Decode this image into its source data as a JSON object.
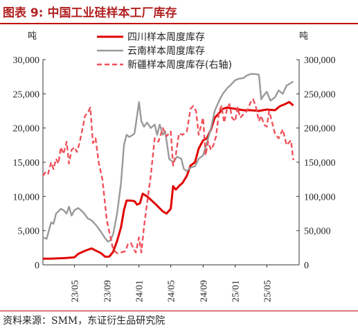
{
  "figure": {
    "title": "图表 9:  中国工业硅样本工厂库存",
    "source": "资料来源：SMM，东证衍生品研究院"
  },
  "chart_data": {
    "type": "line",
    "left_unit": "吨",
    "right_unit": "吨",
    "left_ylim": [
      0,
      30000
    ],
    "right_ylim": [
      0,
      300000
    ],
    "left_ticks": [
      "0",
      "5,000",
      "10,000",
      "15,000",
      "20,000",
      "25,000",
      "30,000"
    ],
    "right_ticks": [
      "0",
      "50,000",
      "100,000",
      "150,000",
      "200,000",
      "250,000",
      "300,000"
    ],
    "x_range": [
      "2023-01-01",
      "2025-09-01"
    ],
    "x_ticks": [
      "23/05",
      "23/09",
      "24/01",
      "24/05",
      "24/09",
      "25/01",
      "25/05"
    ],
    "legend_position": "top-center",
    "grid": false,
    "series": [
      {
        "name": "四川样本周度库存",
        "axis": "left",
        "color": "#e00000",
        "dash": "solid",
        "points": [
          [
            "2023-01-01",
            900
          ],
          [
            "2023-02-01",
            900
          ],
          [
            "2023-03-01",
            950
          ],
          [
            "2023-04-01",
            1000
          ],
          [
            "2023-05-01",
            1100
          ],
          [
            "2023-05-15",
            1600
          ],
          [
            "2023-06-01",
            1900
          ],
          [
            "2023-06-20",
            2200
          ],
          [
            "2023-07-05",
            2400
          ],
          [
            "2023-07-20",
            2100
          ],
          [
            "2023-08-10",
            1700
          ],
          [
            "2023-08-25",
            1200
          ],
          [
            "2023-09-10",
            1200
          ],
          [
            "2023-09-25",
            1900
          ],
          [
            "2023-10-10",
            3500
          ],
          [
            "2023-10-25",
            5500
          ],
          [
            "2023-11-05",
            8000
          ],
          [
            "2023-11-15",
            9400
          ],
          [
            "2023-12-01",
            9400
          ],
          [
            "2023-12-15",
            9300
          ],
          [
            "2023-12-25",
            8800
          ],
          [
            "2024-01-05",
            9000
          ],
          [
            "2024-01-15",
            10400
          ],
          [
            "2024-02-01",
            10000
          ],
          [
            "2024-03-01",
            9000
          ],
          [
            "2024-04-01",
            7800
          ],
          [
            "2024-04-15",
            7500
          ],
          [
            "2024-05-01",
            8200
          ],
          [
            "2024-05-10",
            11500
          ],
          [
            "2024-05-20",
            11000
          ],
          [
            "2024-06-01",
            11500
          ],
          [
            "2024-06-15",
            12000
          ],
          [
            "2024-07-01",
            13000
          ],
          [
            "2024-07-15",
            14500
          ],
          [
            "2024-08-01",
            15000
          ],
          [
            "2024-08-15",
            17000
          ],
          [
            "2024-09-01",
            18200
          ],
          [
            "2024-09-15",
            18500
          ],
          [
            "2024-10-01",
            19800
          ],
          [
            "2024-10-15",
            21500
          ],
          [
            "2024-11-01",
            22200
          ],
          [
            "2024-11-15",
            22800
          ],
          [
            "2024-12-01",
            23000
          ],
          [
            "2025-01-01",
            22800
          ],
          [
            "2025-02-01",
            22600
          ],
          [
            "2025-03-01",
            22600
          ],
          [
            "2025-04-01",
            22500
          ],
          [
            "2025-05-01",
            22700
          ],
          [
            "2025-06-01",
            22600
          ],
          [
            "2025-06-20",
            23200
          ],
          [
            "2025-07-10",
            23500
          ],
          [
            "2025-07-25",
            23800
          ],
          [
            "2025-08-10",
            23300
          ]
        ]
      },
      {
        "name": "云南样本周度库存",
        "axis": "left",
        "color": "#999999",
        "dash": "solid",
        "points": [
          [
            "2023-01-01",
            4000
          ],
          [
            "2023-01-15",
            3800
          ],
          [
            "2023-02-01",
            6200
          ],
          [
            "2023-02-10",
            6000
          ],
          [
            "2023-02-20",
            7500
          ],
          [
            "2023-03-01",
            7800
          ],
          [
            "2023-03-10",
            8200
          ],
          [
            "2023-03-20",
            8000
          ],
          [
            "2023-04-01",
            7500
          ],
          [
            "2023-04-10",
            8500
          ],
          [
            "2023-04-20",
            7200
          ],
          [
            "2023-05-01",
            8000
          ],
          [
            "2023-05-15",
            8300
          ],
          [
            "2023-05-25",
            8000
          ],
          [
            "2023-06-05",
            7600
          ],
          [
            "2023-06-20",
            6800
          ],
          [
            "2023-07-05",
            6500
          ],
          [
            "2023-07-20",
            5900
          ],
          [
            "2023-08-10",
            4800
          ],
          [
            "2023-08-25",
            3900
          ],
          [
            "2023-09-05",
            3400
          ],
          [
            "2023-09-15",
            3600
          ],
          [
            "2023-09-25",
            4500
          ],
          [
            "2023-10-10",
            7500
          ],
          [
            "2023-10-25",
            12000
          ],
          [
            "2023-11-05",
            17500
          ],
          [
            "2023-11-15",
            19000
          ],
          [
            "2023-11-25",
            18700
          ],
          [
            "2023-12-05",
            18900
          ],
          [
            "2023-12-15",
            19200
          ],
          [
            "2023-12-25",
            21800
          ],
          [
            "2024-01-01",
            23800
          ],
          [
            "2024-01-10",
            21000
          ],
          [
            "2024-01-20",
            20200
          ],
          [
            "2024-02-01",
            20800
          ],
          [
            "2024-02-15",
            20000
          ],
          [
            "2024-03-01",
            20500
          ],
          [
            "2024-03-10",
            19000
          ],
          [
            "2024-03-20",
            20500
          ],
          [
            "2024-04-01",
            19000
          ],
          [
            "2024-04-10",
            19500
          ],
          [
            "2024-04-25",
            15500
          ],
          [
            "2024-05-10",
            15000
          ],
          [
            "2024-05-25",
            15800
          ],
          [
            "2024-06-10",
            15500
          ],
          [
            "2024-06-20",
            14000
          ],
          [
            "2024-07-01",
            13700
          ],
          [
            "2024-07-15",
            14200
          ],
          [
            "2024-08-01",
            14400
          ],
          [
            "2024-08-15",
            15500
          ],
          [
            "2024-09-01",
            16000
          ],
          [
            "2024-09-15",
            17800
          ],
          [
            "2024-10-01",
            20000
          ],
          [
            "2024-10-15",
            22500
          ],
          [
            "2024-11-01",
            24000
          ],
          [
            "2024-11-15",
            25000
          ],
          [
            "2024-12-01",
            25800
          ],
          [
            "2024-12-15",
            26300
          ],
          [
            "2025-01-01",
            27000
          ],
          [
            "2025-01-15",
            27200
          ],
          [
            "2025-02-01",
            27300
          ],
          [
            "2025-02-15",
            27700
          ],
          [
            "2025-03-01",
            27900
          ],
          [
            "2025-03-15",
            27900
          ],
          [
            "2025-04-01",
            27800
          ],
          [
            "2025-04-10",
            24200
          ],
          [
            "2025-04-20",
            24800
          ],
          [
            "2025-05-01",
            25300
          ],
          [
            "2025-05-15",
            24000
          ],
          [
            "2025-06-01",
            24500
          ],
          [
            "2025-06-15",
            25500
          ],
          [
            "2025-07-01",
            25000
          ],
          [
            "2025-07-15",
            26200
          ],
          [
            "2025-08-10",
            26800
          ]
        ]
      },
      {
        "name": "新疆样本周度库存(右轴)",
        "axis": "right",
        "color": "#f0505a",
        "dash": "dashed",
        "points": [
          [
            "2023-01-01",
            130000
          ],
          [
            "2023-01-10",
            135000
          ],
          [
            "2023-01-20",
            132000
          ],
          [
            "2023-02-01",
            150000
          ],
          [
            "2023-02-10",
            140000
          ],
          [
            "2023-02-20",
            155000
          ],
          [
            "2023-03-01",
            148000
          ],
          [
            "2023-03-10",
            172000
          ],
          [
            "2023-03-20",
            162000
          ],
          [
            "2023-04-01",
            180000
          ],
          [
            "2023-04-10",
            148000
          ],
          [
            "2023-04-20",
            168000
          ],
          [
            "2023-05-01",
            172000
          ],
          [
            "2023-05-10",
            165000
          ],
          [
            "2023-05-20",
            178000
          ],
          [
            "2023-06-01",
            200000
          ],
          [
            "2023-06-10",
            218000
          ],
          [
            "2023-06-20",
            222000
          ],
          [
            "2023-06-30",
            230000
          ],
          [
            "2023-07-10",
            178000
          ],
          [
            "2023-07-20",
            185000
          ],
          [
            "2023-08-01",
            150000
          ],
          [
            "2023-08-15",
            125000
          ],
          [
            "2023-09-01",
            65000
          ],
          [
            "2023-09-15",
            40000
          ],
          [
            "2023-09-25",
            22000
          ],
          [
            "2023-10-10",
            17000
          ],
          [
            "2023-10-25",
            18000
          ],
          [
            "2023-11-10",
            20000
          ],
          [
            "2023-11-20",
            30000
          ],
          [
            "2023-12-01",
            32000
          ],
          [
            "2023-12-10",
            25000
          ],
          [
            "2023-12-20",
            18000
          ],
          [
            "2024-01-01",
            40000
          ],
          [
            "2024-01-10",
            18000
          ],
          [
            "2024-01-20",
            55000
          ],
          [
            "2024-02-01",
            90000
          ],
          [
            "2024-02-15",
            130000
          ],
          [
            "2024-03-01",
            185000
          ],
          [
            "2024-03-15",
            180000
          ],
          [
            "2024-04-01",
            200000
          ],
          [
            "2024-04-15",
            188000
          ],
          [
            "2024-05-01",
            195000
          ],
          [
            "2024-05-10",
            145000
          ],
          [
            "2024-05-20",
            160000
          ],
          [
            "2024-06-01",
            192000
          ],
          [
            "2024-06-15",
            190000
          ],
          [
            "2024-07-01",
            195000
          ],
          [
            "2024-07-15",
            228000
          ],
          [
            "2024-07-25",
            232000
          ],
          [
            "2024-08-05",
            225000
          ],
          [
            "2024-08-15",
            190000
          ],
          [
            "2024-09-01",
            215000
          ],
          [
            "2024-09-10",
            160000
          ],
          [
            "2024-09-20",
            180000
          ],
          [
            "2024-10-01",
            168000
          ],
          [
            "2024-10-10",
            175000
          ],
          [
            "2024-10-20",
            188000
          ],
          [
            "2024-11-01",
            225000
          ],
          [
            "2024-11-10",
            232000
          ],
          [
            "2024-11-20",
            208000
          ],
          [
            "2024-12-01",
            228000
          ],
          [
            "2024-12-10",
            235000
          ],
          [
            "2024-12-20",
            215000
          ],
          [
            "2025-01-01",
            210000
          ],
          [
            "2025-01-10",
            230000
          ],
          [
            "2025-01-20",
            215000
          ],
          [
            "2025-02-01",
            220000
          ],
          [
            "2025-02-15",
            225000
          ],
          [
            "2025-03-01",
            238000
          ],
          [
            "2025-03-10",
            242000
          ],
          [
            "2025-03-20",
            232000
          ],
          [
            "2025-04-01",
            210000
          ],
          [
            "2025-04-10",
            218000
          ],
          [
            "2025-04-20",
            205000
          ],
          [
            "2025-05-01",
            202000
          ],
          [
            "2025-05-10",
            225000
          ],
          [
            "2025-05-20",
            210000
          ],
          [
            "2025-06-01",
            192000
          ],
          [
            "2025-06-15",
            185000
          ],
          [
            "2025-07-01",
            198000
          ],
          [
            "2025-07-15",
            175000
          ],
          [
            "2025-08-01",
            182000
          ],
          [
            "2025-08-10",
            153000
          ]
        ]
      }
    ]
  }
}
